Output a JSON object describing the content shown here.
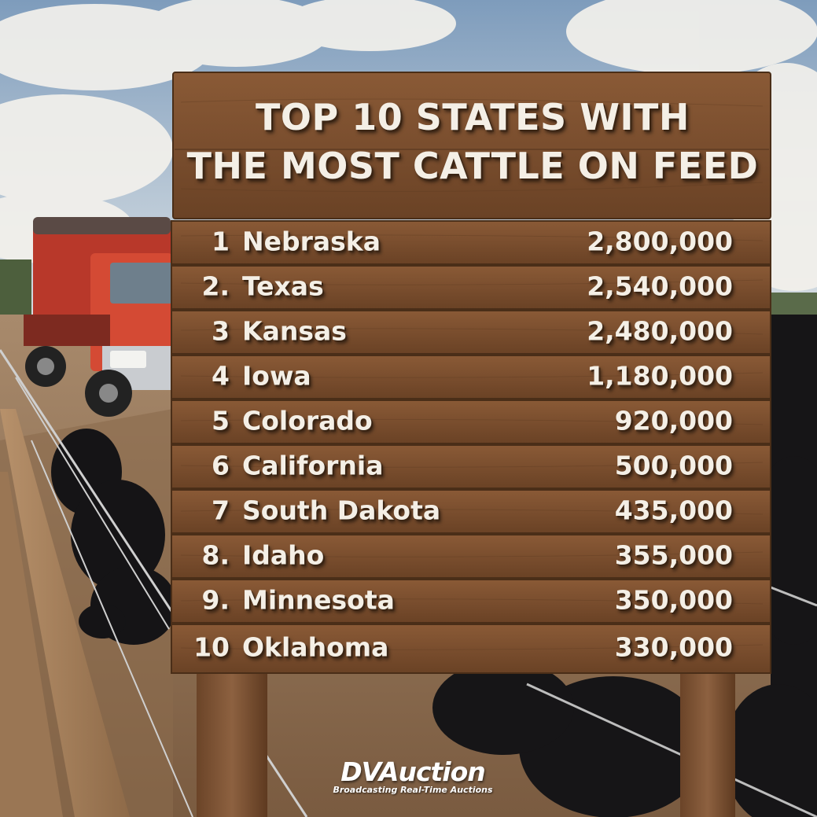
{
  "sign": {
    "title_line1": "TOP 10 STATES WITH",
    "title_line2": "THE MOST CATTLE ON FEED",
    "rows": [
      {
        "rank": "1",
        "state": "Nebraska",
        "value": "2,800,000"
      },
      {
        "rank": "2.",
        "state": "Texas",
        "value": "2,540,000"
      },
      {
        "rank": "3",
        "state": "Kansas",
        "value": "2,480,000"
      },
      {
        "rank": "4",
        "state": "Iowa",
        "value": "1,180,000"
      },
      {
        "rank": "5",
        "state": "Colorado",
        "value": "920,000"
      },
      {
        "rank": "6",
        "state": "California",
        "value": "500,000"
      },
      {
        "rank": "7",
        "state": "South Dakota",
        "value": "435,000"
      },
      {
        "rank": "8.",
        "state": "Idaho",
        "value": "355,000"
      },
      {
        "rank": "9.",
        "state": "Minnesota",
        "value": "350,000"
      },
      {
        "rank": "10",
        "state": "Oklahoma",
        "value": "330,000"
      }
    ]
  },
  "logo": {
    "name": "DVAuction",
    "tagline": "Broadcasting Real-Time Auctions"
  },
  "colors": {
    "sky": "#9fb7cf",
    "wood": "#7a4e2e",
    "truck": "#c8412f",
    "cattle": "#1b1a1c",
    "text": "#f4efe6"
  }
}
